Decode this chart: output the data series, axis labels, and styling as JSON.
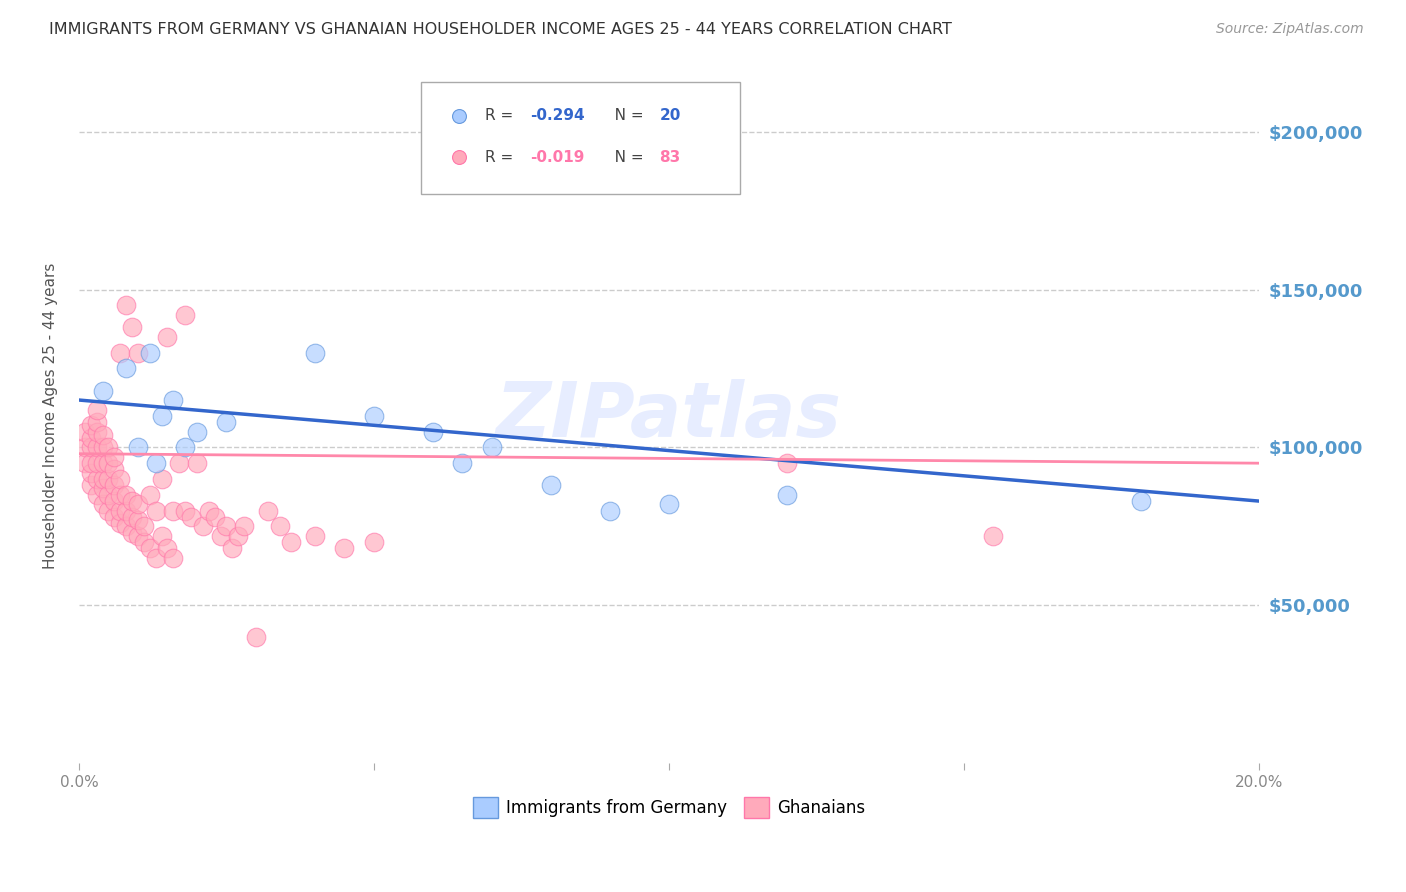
{
  "title": "IMMIGRANTS FROM GERMANY VS GHANAIAN HOUSEHOLDER INCOME AGES 25 - 44 YEARS CORRELATION CHART",
  "source": "Source: ZipAtlas.com",
  "ylabel": "Householder Income Ages 25 - 44 years",
  "ytick_labels": [
    "$50,000",
    "$100,000",
    "$150,000",
    "$200,000"
  ],
  "ytick_values": [
    50000,
    100000,
    150000,
    200000
  ],
  "ylim": [
    0,
    220000
  ],
  "xlim": [
    0,
    0.2
  ],
  "watermark": "ZIPatlas",
  "blue_scatter_color": "#AACCFF",
  "pink_scatter_color": "#FFAABB",
  "blue_edge_color": "#6699DD",
  "pink_edge_color": "#FF77AA",
  "blue_line_color": "#3366CC",
  "pink_line_color": "#FF88AA",
  "axis_label_color": "#5599CC",
  "grid_color": "#CCCCCC",
  "title_color": "#333333",
  "germany_x": [
    0.004,
    0.008,
    0.01,
    0.012,
    0.013,
    0.014,
    0.016,
    0.018,
    0.02,
    0.025,
    0.04,
    0.05,
    0.06,
    0.065,
    0.07,
    0.08,
    0.09,
    0.1,
    0.12,
    0.18
  ],
  "germany_y": [
    118000,
    125000,
    100000,
    130000,
    95000,
    110000,
    115000,
    100000,
    105000,
    108000,
    130000,
    110000,
    105000,
    95000,
    100000,
    88000,
    80000,
    82000,
    85000,
    83000
  ],
  "ghana_x": [
    0.001,
    0.001,
    0.001,
    0.002,
    0.002,
    0.002,
    0.002,
    0.002,
    0.002,
    0.003,
    0.003,
    0.003,
    0.003,
    0.003,
    0.003,
    0.003,
    0.004,
    0.004,
    0.004,
    0.004,
    0.004,
    0.004,
    0.005,
    0.005,
    0.005,
    0.005,
    0.005,
    0.006,
    0.006,
    0.006,
    0.006,
    0.006,
    0.007,
    0.007,
    0.007,
    0.007,
    0.007,
    0.008,
    0.008,
    0.008,
    0.008,
    0.009,
    0.009,
    0.009,
    0.009,
    0.01,
    0.01,
    0.01,
    0.01,
    0.011,
    0.011,
    0.012,
    0.012,
    0.013,
    0.013,
    0.014,
    0.014,
    0.015,
    0.015,
    0.016,
    0.016,
    0.017,
    0.018,
    0.018,
    0.019,
    0.02,
    0.021,
    0.022,
    0.023,
    0.024,
    0.025,
    0.026,
    0.027,
    0.028,
    0.03,
    0.032,
    0.034,
    0.036,
    0.04,
    0.045,
    0.05,
    0.12,
    0.155
  ],
  "ghana_y": [
    95000,
    100000,
    105000,
    88000,
    92000,
    95000,
    100000,
    103000,
    107000,
    85000,
    90000,
    95000,
    100000,
    105000,
    108000,
    112000,
    82000,
    87000,
    90000,
    95000,
    100000,
    104000,
    80000,
    85000,
    90000,
    95000,
    100000,
    78000,
    83000,
    88000,
    93000,
    97000,
    76000,
    80000,
    85000,
    90000,
    130000,
    75000,
    80000,
    85000,
    145000,
    73000,
    78000,
    83000,
    138000,
    72000,
    77000,
    82000,
    130000,
    70000,
    75000,
    68000,
    85000,
    65000,
    80000,
    72000,
    90000,
    68000,
    135000,
    65000,
    80000,
    95000,
    80000,
    142000,
    78000,
    95000,
    75000,
    80000,
    78000,
    72000,
    75000,
    68000,
    72000,
    75000,
    40000,
    80000,
    75000,
    70000,
    72000,
    68000,
    70000,
    95000,
    72000
  ],
  "xtick_positions": [
    0.0,
    0.05,
    0.1,
    0.15,
    0.2
  ],
  "xtick_labels": [
    "0.0%",
    "",
    "",
    "",
    "20.0%"
  ]
}
